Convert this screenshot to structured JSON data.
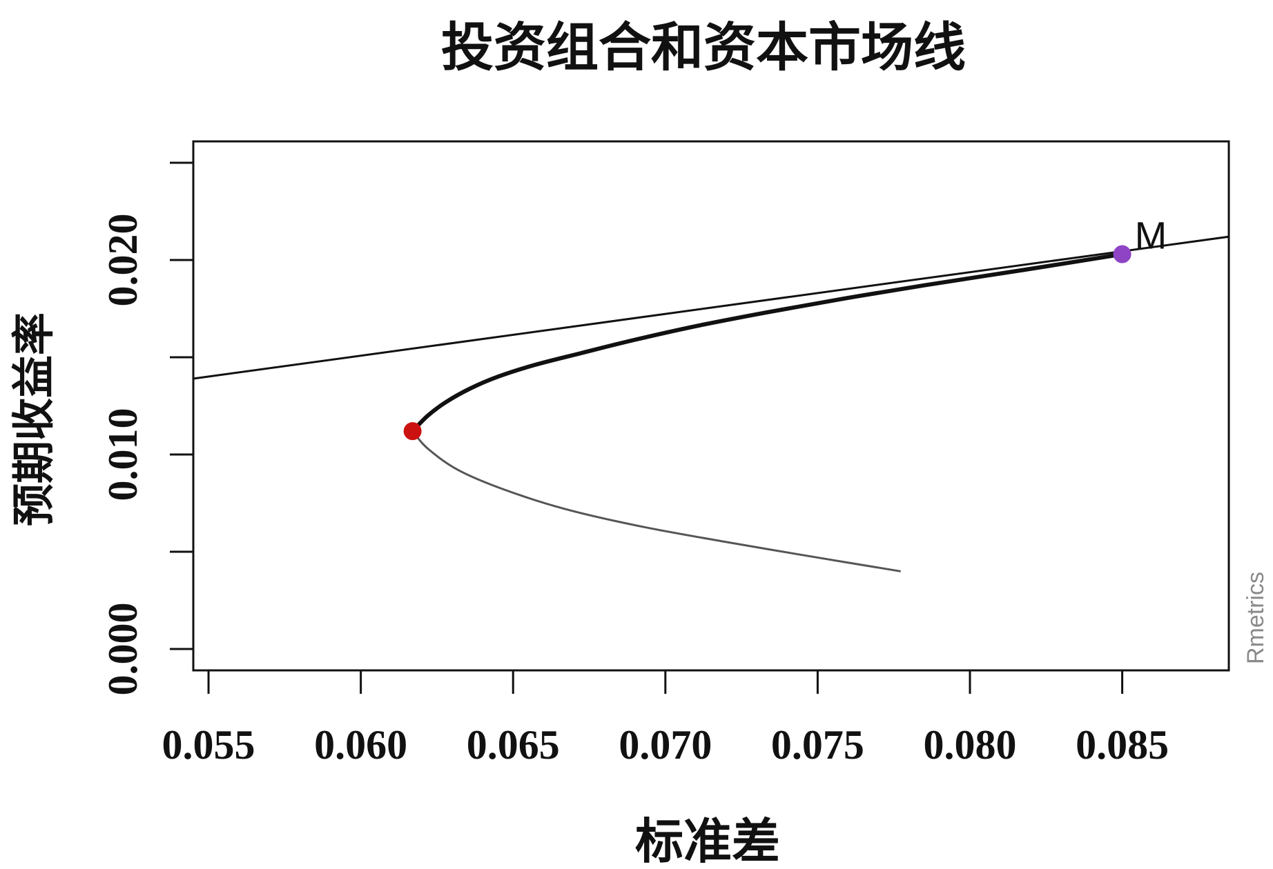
{
  "chart_data": {
    "type": "line",
    "title": "投资组合和资本市场线",
    "xlabel": "标准差",
    "ylabel": "预期收益率",
    "xlim": [
      0.0545,
      0.0885
    ],
    "ylim": [
      -0.0011,
      0.0261
    ],
    "x_ticks": [
      0.055,
      0.06,
      0.065,
      0.07,
      0.075,
      0.08,
      0.085
    ],
    "x_tick_labels": [
      "0.055",
      "0.060",
      "0.065",
      "0.070",
      "0.075",
      "0.080",
      "0.085"
    ],
    "y_ticks": [
      0.0,
      0.005,
      0.01,
      0.015,
      0.02,
      0.025
    ],
    "y_tick_labels": [
      "0.000",
      "",
      "0.010",
      "",
      "0.020",
      ""
    ],
    "grid": false,
    "legend": "none",
    "series": [
      {
        "role": "capital-market-line",
        "color": "#111111",
        "x": [
          0.0545,
          0.0885
        ],
        "y": [
          0.0139,
          0.0212
        ]
      },
      {
        "role": "efficient-frontier",
        "color": "#111111",
        "x": [
          0.0617,
          0.0622,
          0.0628,
          0.0636,
          0.0645,
          0.0657,
          0.0672,
          0.069,
          0.071,
          0.0733,
          0.0758,
          0.0785,
          0.0818,
          0.085
        ],
        "y": [
          0.0112,
          0.012,
          0.0127,
          0.0134,
          0.014,
          0.0146,
          0.0152,
          0.0159,
          0.0166,
          0.0173,
          0.018,
          0.0187,
          0.0195,
          0.0203
        ]
      },
      {
        "role": "inefficient-frontier",
        "color": "#555555",
        "x": [
          0.0617,
          0.0622,
          0.0632,
          0.0647,
          0.0667,
          0.0692,
          0.072,
          0.075,
          0.0777
        ],
        "y": [
          0.0112,
          0.0103,
          0.0092,
          0.0082,
          0.0072,
          0.0063,
          0.0055,
          0.0047,
          0.004
        ]
      }
    ],
    "points": [
      {
        "role": "minimum-variance",
        "x": 0.0617,
        "y": 0.0112,
        "color": "#cc1111",
        "label": ""
      },
      {
        "role": "tangency",
        "x": 0.085,
        "y": 0.0203,
        "color": "#8e44c4",
        "label": "M"
      }
    ],
    "watermark": "Rmetrics"
  }
}
